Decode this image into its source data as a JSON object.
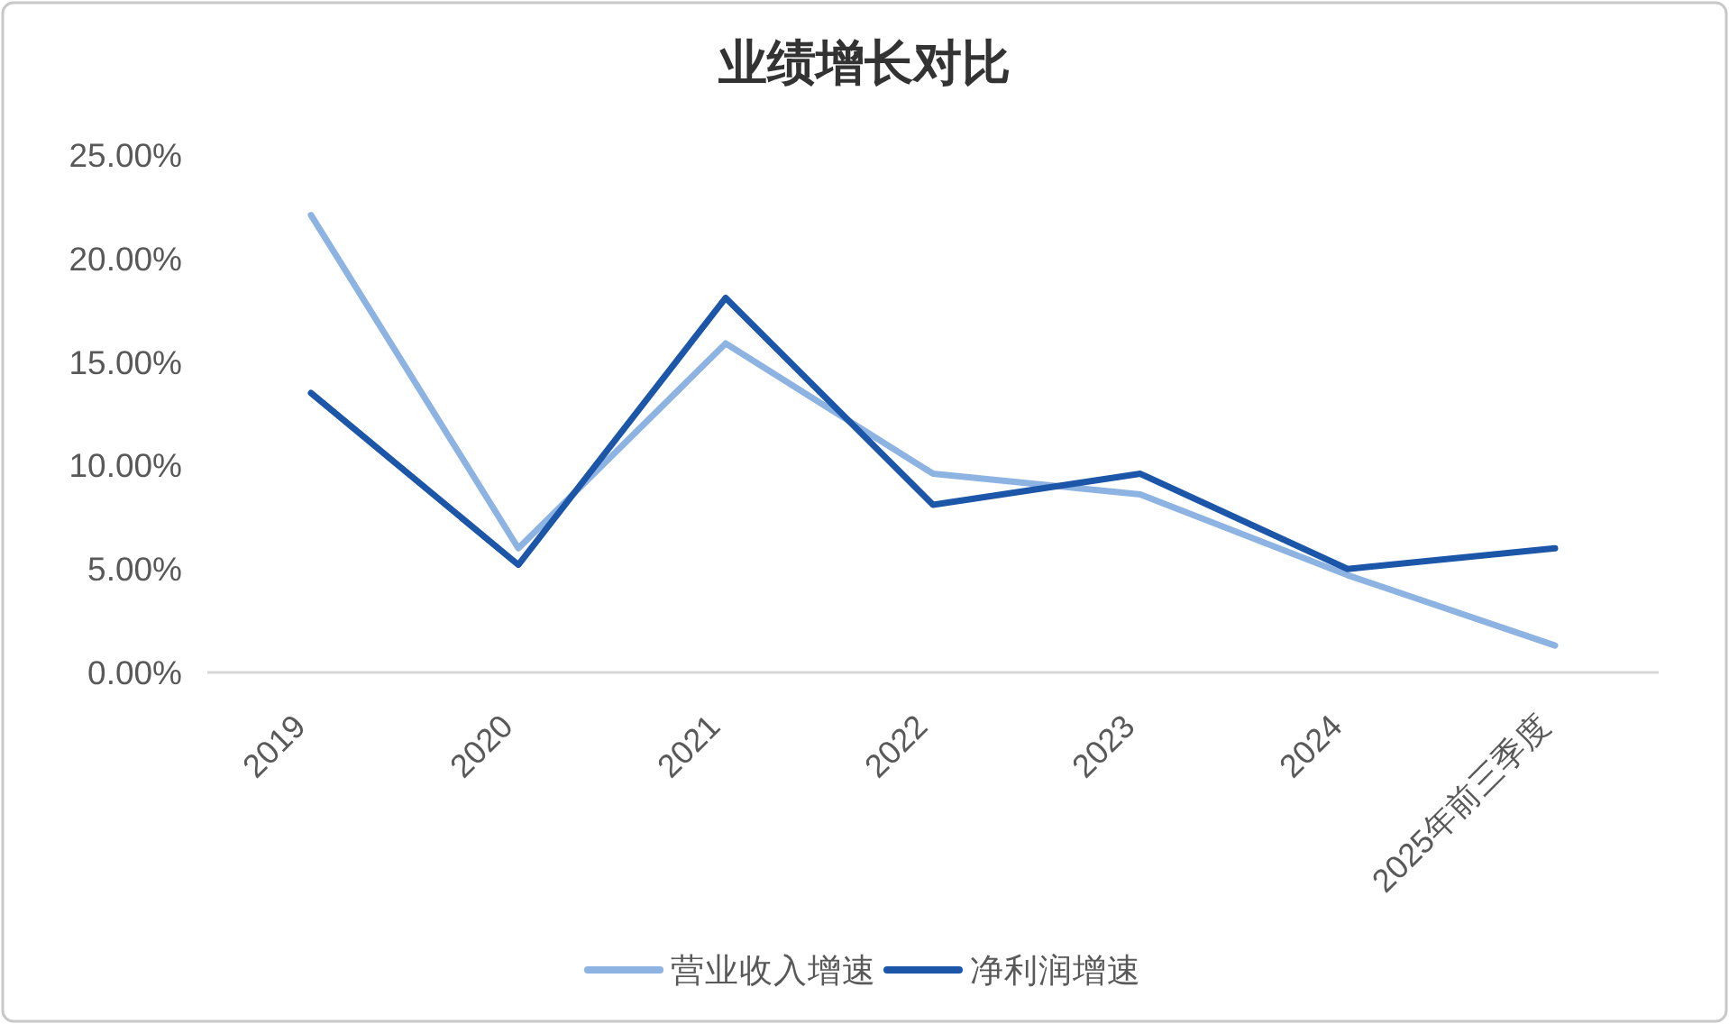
{
  "chart_data": {
    "type": "line",
    "title": "业绩增长对比",
    "categories": [
      "2019",
      "2020",
      "2021",
      "2022",
      "2023",
      "2024",
      "2025年前三季度"
    ],
    "series": [
      {
        "name": "营业收入增速",
        "color": "#8db3e2",
        "values": [
          22.1,
          6.0,
          15.9,
          9.6,
          8.6,
          4.7,
          1.3
        ]
      },
      {
        "name": "净利润增速",
        "color": "#1c56a8",
        "values": [
          13.5,
          5.2,
          18.1,
          8.1,
          9.6,
          5.0,
          6.0
        ]
      }
    ],
    "ylim": [
      0,
      25
    ],
    "yticks": [
      {
        "value": 0,
        "label": "0.00%"
      },
      {
        "value": 5,
        "label": "5.00%"
      },
      {
        "value": 10,
        "label": "10.00%"
      },
      {
        "value": 15,
        "label": "15.00%"
      },
      {
        "value": 20,
        "label": "20.00%"
      },
      {
        "value": 25,
        "label": "25.00%"
      }
    ],
    "legend": "bottom",
    "line_style": "solid"
  }
}
